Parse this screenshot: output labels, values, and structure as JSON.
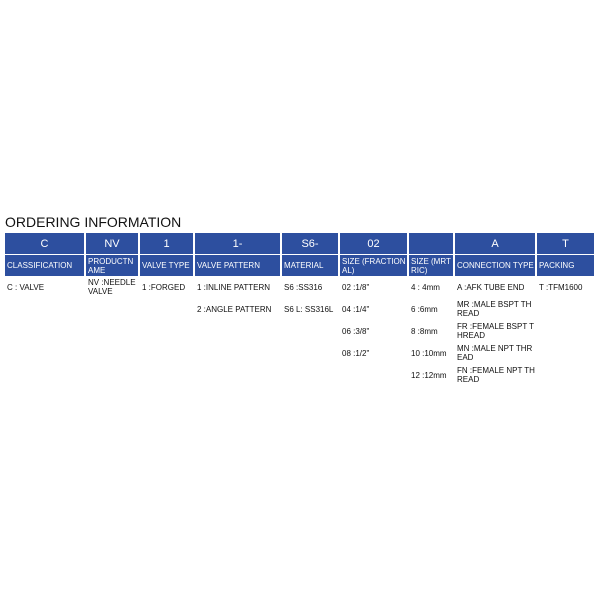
{
  "header": {
    "title": "ORDERING INFORMATION"
  },
  "table": {
    "columns": [
      {
        "code": "C",
        "label": "CLASSIFICATION",
        "entries": [
          "C : VALVE"
        ]
      },
      {
        "code": "NV",
        "label": "PRODUCTNAME",
        "entries": [
          "NV :NEEDLE VALVE"
        ]
      },
      {
        "code": "1",
        "label": "VALVE TYPE",
        "entries": [
          "1 :FORGED"
        ]
      },
      {
        "code": "1-",
        "label": "VALVE PATTERN",
        "entries": [
          "1 :INLINE PATTERN",
          "2 :ANGLE PATTERN"
        ]
      },
      {
        "code": "S6-",
        "label": "MATERIAL",
        "entries": [
          "S6 :SS316",
          "S6 L: SS316L"
        ]
      },
      {
        "code": "02",
        "label": "SIZE (FRACTIONAL)",
        "entries": [
          "02 :1/8\"",
          "04 :1/4\"",
          "06 :3/8\"",
          "08 :1/2\""
        ]
      },
      {
        "code": null,
        "label": "SIZE (MRTRIC)",
        "entries": [
          "4 : 4mm",
          "6 :6mm",
          "8 :8mm",
          "10 :10mm",
          "12 :12mm"
        ]
      },
      {
        "code": "A",
        "label": "CONNECTION TYPE",
        "entries": [
          "A :AFK TUBE END",
          "MR :MALE BSPT THREAD",
          "FR :FEMALE BSPT THREAD",
          "MN :MALE NPT THREAD",
          "FN :FEMALE NPT THREAD"
        ]
      },
      {
        "code": "T",
        "label": "PACKING",
        "entries": [
          "T :TFM1600"
        ]
      }
    ]
  }
}
